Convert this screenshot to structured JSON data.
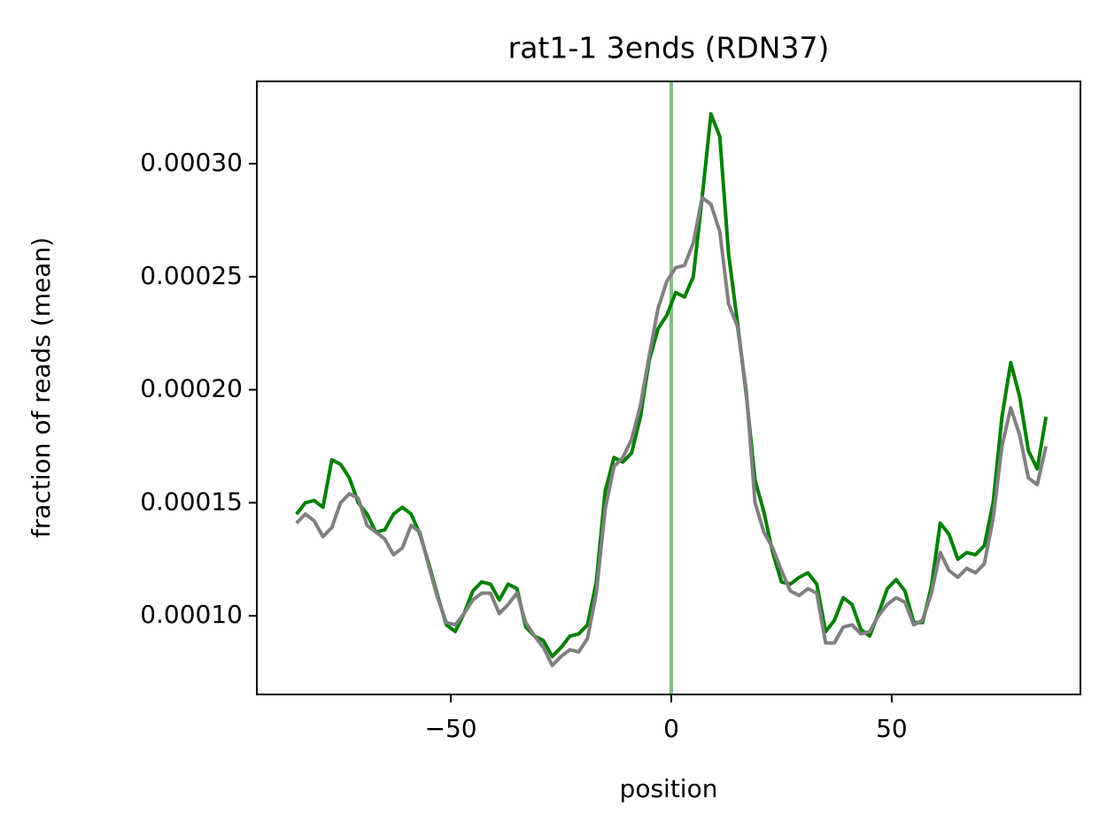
{
  "chart_data": {
    "type": "line",
    "title": "rat1-1 3ends (RDN37)",
    "xlabel": "position",
    "ylabel": "fraction of reads (mean)",
    "x": [
      -85,
      -83,
      -81,
      -79,
      -77,
      -75,
      -73,
      -71,
      -69,
      -67,
      -65,
      -63,
      -61,
      -59,
      -57,
      -55,
      -53,
      -51,
      -49,
      -47,
      -45,
      -43,
      -41,
      -39,
      -37,
      -35,
      -33,
      -31,
      -29,
      -27,
      -25,
      -23,
      -21,
      -19,
      -17,
      -15,
      -13,
      -11,
      -9,
      -7,
      -5,
      -3,
      -1,
      1,
      3,
      5,
      7,
      9,
      11,
      13,
      15,
      17,
      19,
      21,
      23,
      25,
      27,
      29,
      31,
      33,
      35,
      37,
      39,
      41,
      43,
      45,
      47,
      49,
      51,
      53,
      55,
      57,
      59,
      61,
      63,
      65,
      67,
      69,
      71,
      73,
      75,
      77,
      79,
      81,
      83,
      85
    ],
    "series": [
      {
        "color": "#008000",
        "values": [
          0.000145,
          0.00015,
          0.000151,
          0.000148,
          0.000169,
          0.000167,
          0.000161,
          0.00015,
          0.000145,
          0.000137,
          0.000138,
          0.000145,
          0.000148,
          0.000145,
          0.000136,
          0.000123,
          0.000109,
          9.6e-05,
          9.3e-05,
          0.000101,
          0.000111,
          0.000115,
          0.000114,
          0.000107,
          0.000114,
          0.000112,
          9.5e-05,
          9.1e-05,
          8.9e-05,
          8.2e-05,
          8.6e-05,
          9.1e-05,
          9.2e-05,
          9.6e-05,
          0.000115,
          0.000155,
          0.00017,
          0.000168,
          0.000172,
          0.000188,
          0.000213,
          0.000227,
          0.000233,
          0.000243,
          0.000241,
          0.00025,
          0.000285,
          0.000322,
          0.000312,
          0.00026,
          0.00023,
          0.000198,
          0.00016,
          0.000146,
          0.000128,
          0.000115,
          0.000114,
          0.000117,
          0.000119,
          0.000114,
          9.3e-05,
          9.8e-05,
          0.000108,
          0.000105,
          9.4e-05,
          9.1e-05,
          0.000101,
          0.000112,
          0.000116,
          0.000111,
          9.7e-05,
          9.7e-05,
          0.000113,
          0.000141,
          0.000136,
          0.000125,
          0.000128,
          0.000127,
          0.000131,
          0.00015,
          0.000188,
          0.000212,
          0.000197,
          0.000173,
          0.000165,
          0.000188
        ]
      },
      {
        "color": "#808080",
        "values": [
          0.000141,
          0.000145,
          0.000142,
          0.000135,
          0.000139,
          0.00015,
          0.000154,
          0.000152,
          0.00014,
          0.000137,
          0.000134,
          0.000127,
          0.00013,
          0.00014,
          0.000137,
          0.000122,
          0.000108,
          9.7e-05,
          9.6e-05,
          0.000101,
          0.000107,
          0.00011,
          0.00011,
          0.000101,
          0.000105,
          0.00011,
          9.7e-05,
          9.1e-05,
          8.6e-05,
          7.8e-05,
          8.2e-05,
          8.5e-05,
          8.4e-05,
          9e-05,
          0.00011,
          0.000147,
          0.000166,
          0.00017,
          0.000178,
          0.000193,
          0.000215,
          0.000236,
          0.000248,
          0.000254,
          0.000255,
          0.000265,
          0.000285,
          0.000282,
          0.00027,
          0.000238,
          0.000228,
          0.0002,
          0.00015,
          0.000137,
          0.00013,
          0.00012,
          0.000111,
          0.000109,
          0.000112,
          0.00011,
          8.8e-05,
          8.8e-05,
          9.5e-05,
          9.6e-05,
          9.2e-05,
          9.3e-05,
          0.0001,
          0.000105,
          0.000108,
          0.000106,
          9.6e-05,
          9.8e-05,
          0.00011,
          0.000128,
          0.00012,
          0.000117,
          0.000121,
          0.000119,
          0.000123,
          0.000143,
          0.000175,
          0.000192,
          0.00018,
          0.000161,
          0.000158,
          0.000175
        ]
      }
    ],
    "axvline": 0,
    "axvline_color": "#80c080",
    "xlim": [
      -94,
      92.8
    ],
    "xticks": [
      {
        "value": -50,
        "label": "−50"
      },
      0,
      50
    ],
    "ylim": [
      6.52e-05,
      0.0003364
    ],
    "yticks": [
      {
        "value": 0.0001,
        "label": "0.00010"
      },
      {
        "value": 0.00015,
        "label": "0.00015"
      },
      {
        "value": 0.0002,
        "label": "0.00020"
      },
      {
        "value": 0.00025,
        "label": "0.00025"
      },
      {
        "value": 0.0003,
        "label": "0.00030"
      }
    ]
  }
}
